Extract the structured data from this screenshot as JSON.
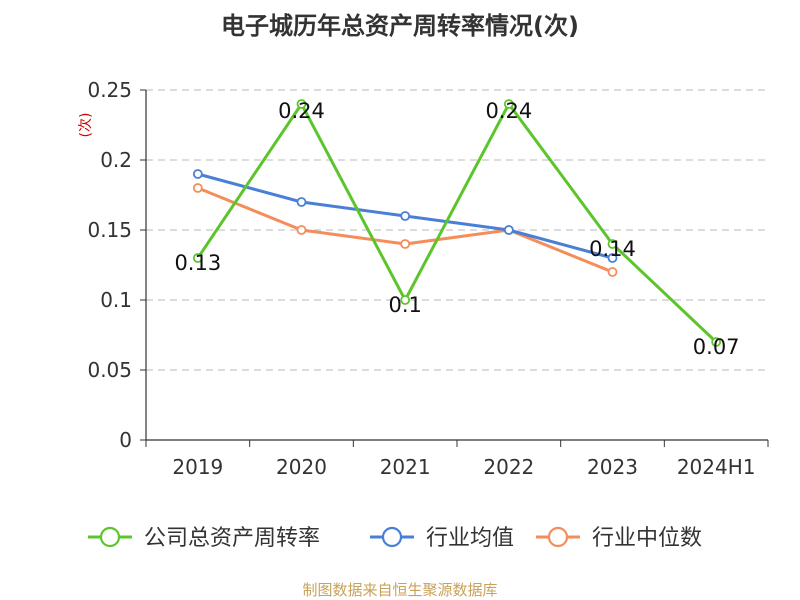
{
  "chart_data": {
    "type": "line",
    "title": "电子城历年总资产周转率情况(次)",
    "ylabel": "(次)",
    "categories": [
      "2019",
      "2020",
      "2021",
      "2022",
      "2023",
      "2024H1"
    ],
    "ylim": [
      0,
      0.25
    ],
    "yticks": [
      "0",
      "0.05",
      "0.1",
      "0.15",
      "0.2",
      "0.25"
    ],
    "grid": true,
    "legend_position": "bottom",
    "series": [
      {
        "name": "公司总资产周转率",
        "color": "#5cc52c",
        "values": [
          0.13,
          0.24,
          0.1,
          0.24,
          0.14,
          0.07
        ],
        "labels": [
          "0.13",
          "0.24",
          "0.1",
          "0.24",
          "0.14",
          "0.07"
        ]
      },
      {
        "name": "行业均值",
        "color": "#4a7fd8",
        "values": [
          0.19,
          0.17,
          0.16,
          0.15,
          0.13,
          null
        ]
      },
      {
        "name": "行业中位数",
        "color": "#f58d5a",
        "values": [
          0.18,
          0.15,
          0.14,
          0.15,
          0.12,
          null
        ]
      }
    ]
  },
  "source": "制图数据来自恒生聚源数据库"
}
